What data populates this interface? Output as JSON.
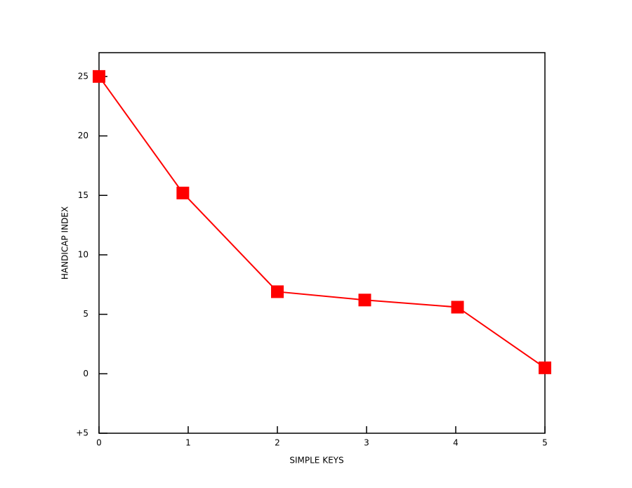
{
  "chart_data": {
    "type": "line",
    "xlabel": "SIMPLE KEYS",
    "ylabel": "HANDICAP INDEX",
    "x": [
      0,
      0.94,
      2,
      2.98,
      4.02,
      5
    ],
    "series": [
      {
        "color": "#ff0000",
        "values": [
          25.0,
          15.2,
          6.9,
          6.2,
          5.6,
          0.5
        ]
      }
    ],
    "xlim": [
      0,
      5
    ],
    "xticks": [
      0,
      1,
      2,
      3,
      4,
      5
    ],
    "ylim": [
      -5,
      27
    ],
    "yticks": [
      {
        "value": -5,
        "label": "+5"
      },
      0,
      5,
      10,
      15,
      20,
      25
    ],
    "grid": false
  }
}
